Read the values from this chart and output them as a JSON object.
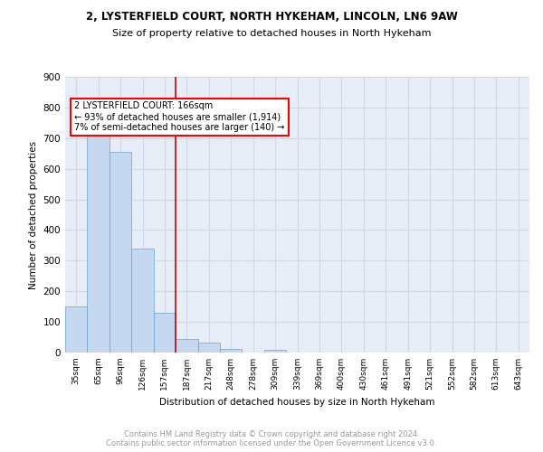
{
  "title1": "2, LYSTERFIELD COURT, NORTH HYKEHAM, LINCOLN, LN6 9AW",
  "title2": "Size of property relative to detached houses in North Hykeham",
  "xlabel": "Distribution of detached houses by size in North Hykeham",
  "ylabel": "Number of detached properties",
  "categories": [
    "35sqm",
    "65sqm",
    "96sqm",
    "126sqm",
    "157sqm",
    "187sqm",
    "217sqm",
    "248sqm",
    "278sqm",
    "309sqm",
    "339sqm",
    "369sqm",
    "400sqm",
    "430sqm",
    "461sqm",
    "491sqm",
    "521sqm",
    "552sqm",
    "582sqm",
    "613sqm",
    "643sqm"
  ],
  "values": [
    150,
    717,
    655,
    340,
    130,
    43,
    31,
    12,
    0,
    8,
    0,
    0,
    0,
    0,
    0,
    0,
    0,
    0,
    0,
    0,
    0
  ],
  "bar_color": "#c5d8f0",
  "bar_edge_color": "#6aa3d5",
  "red_line_x": 4.5,
  "annotation_text": "2 LYSTERFIELD COURT: 166sqm\n← 93% of detached houses are smaller (1,914)\n7% of semi-detached houses are larger (140) →",
  "annotation_box_color": "white",
  "annotation_box_edge": "red",
  "red_line_color": "#cc0000",
  "ylim": [
    0,
    900
  ],
  "yticks": [
    0,
    100,
    200,
    300,
    400,
    500,
    600,
    700,
    800,
    900
  ],
  "grid_color": "#d0d8e8",
  "background_color": "#e8eef8",
  "footer1": "Contains HM Land Registry data © Crown copyright and database right 2024.",
  "footer2": "Contains public sector information licensed under the Open Government Licence v3.0."
}
